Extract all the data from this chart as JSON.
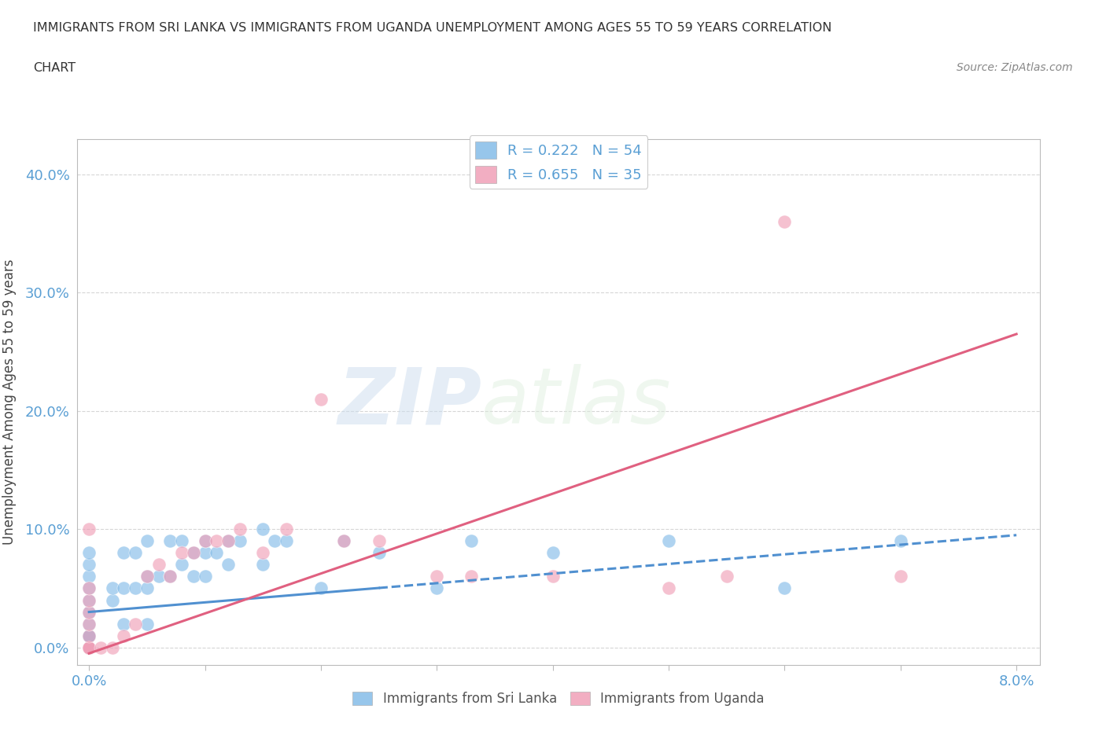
{
  "title_line1": "IMMIGRANTS FROM SRI LANKA VS IMMIGRANTS FROM UGANDA UNEMPLOYMENT AMONG AGES 55 TO 59 YEARS CORRELATION",
  "title_line2": "CHART",
  "source": "Source: ZipAtlas.com",
  "ylabel": "Unemployment Among Ages 55 to 59 years",
  "xlim": [
    -0.001,
    0.082
  ],
  "ylim": [
    -0.015,
    0.43
  ],
  "xticks": [
    0.0,
    0.01,
    0.02,
    0.03,
    0.04,
    0.05,
    0.06,
    0.07,
    0.08
  ],
  "yticks": [
    0.0,
    0.1,
    0.2,
    0.3,
    0.4
  ],
  "ytick_labels": [
    "0.0%",
    "10.0%",
    "20.0%",
    "30.0%",
    "40.0%"
  ],
  "sri_lanka_color": "#85bce8",
  "uganda_color": "#f0a0b8",
  "sri_lanka_line_color": "#5090d0",
  "uganda_line_color": "#e06080",
  "sri_lanka_R": 0.222,
  "sri_lanka_N": 54,
  "uganda_R": 0.655,
  "uganda_N": 35,
  "watermark_zip": "ZIP",
  "watermark_atlas": "atlas",
  "sri_lanka_x": [
    0.0,
    0.0,
    0.0,
    0.0,
    0.0,
    0.0,
    0.0,
    0.0,
    0.0,
    0.0,
    0.0,
    0.0,
    0.0,
    0.0,
    0.0,
    0.0,
    0.002,
    0.002,
    0.003,
    0.003,
    0.003,
    0.004,
    0.004,
    0.005,
    0.005,
    0.005,
    0.005,
    0.006,
    0.007,
    0.007,
    0.008,
    0.008,
    0.009,
    0.009,
    0.01,
    0.01,
    0.01,
    0.011,
    0.012,
    0.012,
    0.013,
    0.015,
    0.015,
    0.016,
    0.017,
    0.02,
    0.022,
    0.025,
    0.03,
    0.033,
    0.04,
    0.05,
    0.06,
    0.07
  ],
  "sri_lanka_y": [
    0.0,
    0.0,
    0.0,
    0.0,
    0.0,
    0.0,
    0.01,
    0.01,
    0.01,
    0.02,
    0.03,
    0.04,
    0.05,
    0.06,
    0.07,
    0.08,
    0.04,
    0.05,
    0.02,
    0.05,
    0.08,
    0.05,
    0.08,
    0.02,
    0.05,
    0.06,
    0.09,
    0.06,
    0.06,
    0.09,
    0.07,
    0.09,
    0.06,
    0.08,
    0.06,
    0.08,
    0.09,
    0.08,
    0.07,
    0.09,
    0.09,
    0.07,
    0.1,
    0.09,
    0.09,
    0.05,
    0.09,
    0.08,
    0.05,
    0.09,
    0.08,
    0.09,
    0.05,
    0.09
  ],
  "uganda_x": [
    0.0,
    0.0,
    0.0,
    0.0,
    0.0,
    0.0,
    0.0,
    0.0,
    0.0,
    0.0,
    0.001,
    0.002,
    0.003,
    0.004,
    0.005,
    0.006,
    0.007,
    0.008,
    0.009,
    0.01,
    0.011,
    0.012,
    0.013,
    0.015,
    0.017,
    0.02,
    0.022,
    0.025,
    0.03,
    0.033,
    0.04,
    0.05,
    0.055,
    0.06,
    0.07
  ],
  "uganda_y": [
    0.0,
    0.0,
    0.0,
    0.0,
    0.01,
    0.02,
    0.03,
    0.04,
    0.05,
    0.1,
    0.0,
    0.0,
    0.01,
    0.02,
    0.06,
    0.07,
    0.06,
    0.08,
    0.08,
    0.09,
    0.09,
    0.09,
    0.1,
    0.08,
    0.1,
    0.21,
    0.09,
    0.09,
    0.06,
    0.06,
    0.06,
    0.05,
    0.06,
    0.36,
    0.06
  ],
  "sri_lanka_trend_x": [
    0.0,
    0.08
  ],
  "sri_lanka_trend_y": [
    0.03,
    0.095
  ],
  "uganda_trend_x": [
    0.0,
    0.08
  ],
  "uganda_trend_y": [
    -0.005,
    0.265
  ]
}
